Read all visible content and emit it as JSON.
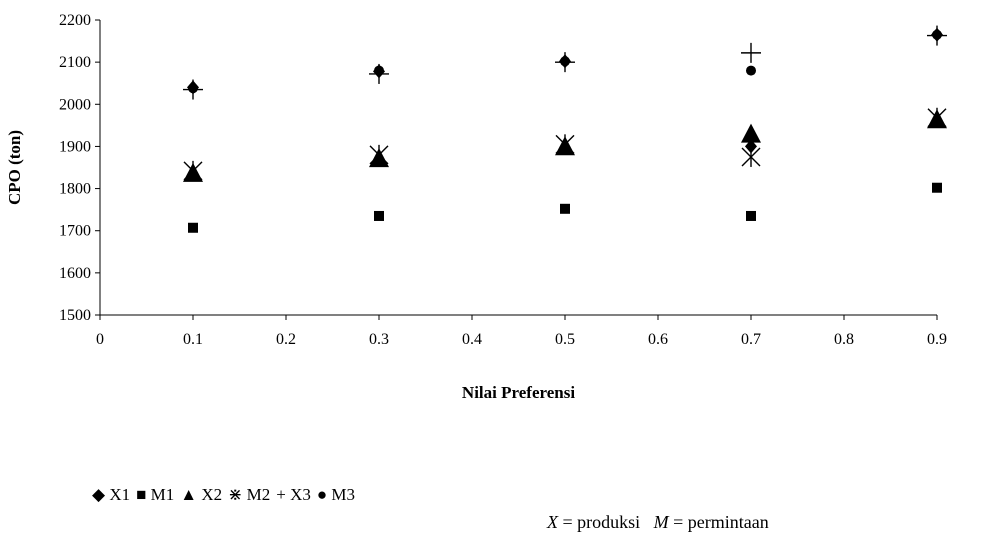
{
  "chart_data": {
    "type": "scatter",
    "xlabel": "Nilai Preferensi",
    "ylabel": "CPO (ton)",
    "xlim": [
      0,
      0.9
    ],
    "ylim": [
      1500,
      2200
    ],
    "xticks": [
      "0",
      "0.1",
      "0.2",
      "0.3",
      "0.4",
      "0.5",
      "0.6",
      "0.7",
      "0.8",
      "0.9"
    ],
    "yticks": [
      "1500",
      "1600",
      "1700",
      "1800",
      "1900",
      "2000",
      "2100",
      "2200"
    ],
    "grid": false,
    "legend_position": "bottom-left",
    "x": [
      0.1,
      0.3,
      0.5,
      0.7,
      0.9
    ],
    "series": [
      {
        "name": "X1",
        "marker": "diamond",
        "values": [
          2040,
          2078,
          2102,
          1900,
          2165
        ]
      },
      {
        "name": "M1",
        "marker": "square",
        "values": [
          1707,
          1735,
          1752,
          1735,
          1802
        ]
      },
      {
        "name": "X2",
        "marker": "triangle",
        "values": [
          1835,
          1870,
          1898,
          1928,
          1962
        ]
      },
      {
        "name": "M2",
        "marker": "asterisk",
        "values": [
          1842,
          1880,
          1905,
          1875,
          1968
        ]
      },
      {
        "name": "X3",
        "marker": "plus",
        "values": [
          2035,
          2072,
          2100,
          2122,
          2163
        ]
      },
      {
        "name": "M3",
        "marker": "circle",
        "values": [
          2038,
          2080,
          2102,
          2080,
          2165
        ]
      }
    ]
  },
  "legend_symbols": {
    "X1": "◆",
    "M1": "■",
    "X2": "▲",
    "M2": "⋇",
    "X3": "+",
    "M3": "●"
  },
  "note": {
    "x_var": "X",
    "x_text": " = produksi",
    "m_var": "M",
    "m_text": " = permintaan"
  }
}
